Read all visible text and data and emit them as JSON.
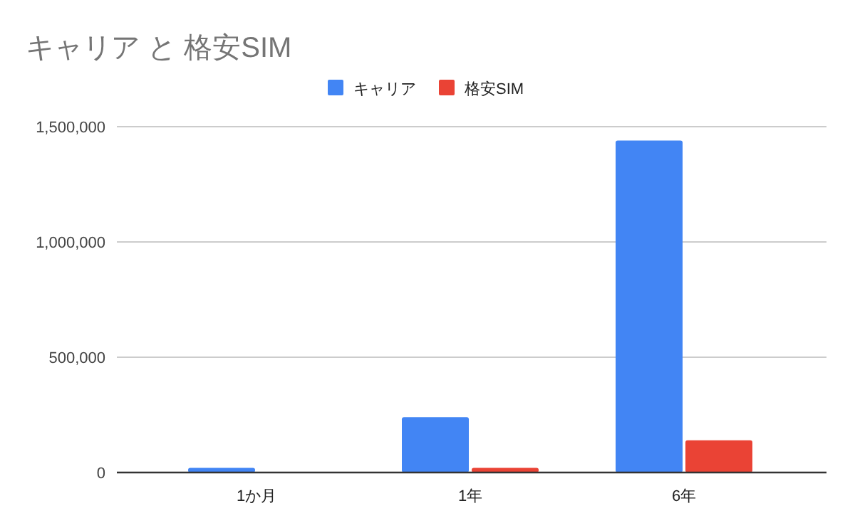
{
  "chart_data": {
    "type": "bar",
    "title": "キャリア と 格安SIM",
    "categories": [
      "1か月",
      "1年",
      "6年"
    ],
    "series": [
      {
        "name": "キャリア",
        "color": "#4285f4",
        "values": [
          20000,
          240000,
          1440000
        ]
      },
      {
        "name": "格安SIM",
        "color": "#ea4335",
        "values": [
          null,
          20000,
          140000
        ]
      }
    ],
    "ylim": [
      0,
      1500000
    ],
    "yticks": [
      {
        "value": 0,
        "label": "0"
      },
      {
        "value": 500000,
        "label": "500,000"
      },
      {
        "value": 1000000,
        "label": "1,000,000"
      },
      {
        "value": 1500000,
        "label": "1,500,000"
      }
    ],
    "grid": "y",
    "legend": "top"
  }
}
